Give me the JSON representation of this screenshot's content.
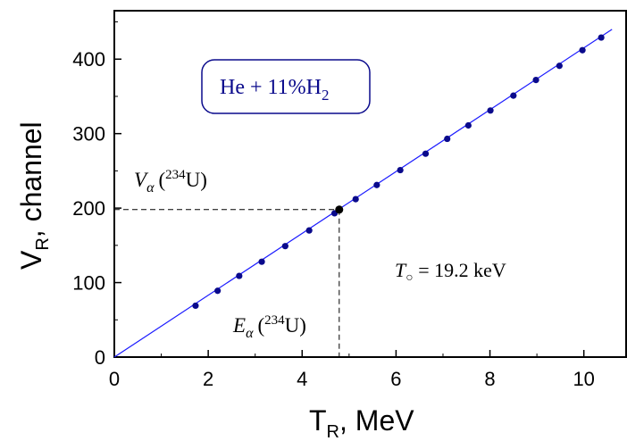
{
  "chart_data": {
    "type": "scatter",
    "xlabel": "T",
    "xlabel_sub": "R",
    "xlabel_unit": ", MeV",
    "ylabel": "V",
    "ylabel_sub": "R",
    "ylabel_unit": ", channel",
    "xlim": [
      0,
      10.9
    ],
    "ylim": [
      0,
      465
    ],
    "xticks": [
      0,
      2,
      4,
      6,
      8,
      10
    ],
    "yticks": [
      0,
      100,
      200,
      300,
      400
    ],
    "xtick_labels": [
      "0",
      "2",
      "4",
      "6",
      "8",
      "10"
    ],
    "ytick_labels": [
      "0",
      "100",
      "200",
      "300",
      "400"
    ],
    "legend_box": {
      "prefix": "He + 11%H",
      "subscript": "2"
    },
    "series": [
      {
        "x": [
          1.73,
          2.2,
          2.66,
          3.14,
          3.64,
          4.15,
          4.69,
          5.14,
          5.59,
          6.09,
          6.63,
          7.09,
          7.54,
          8.01,
          8.5,
          8.98,
          9.48,
          9.97,
          10.37
        ],
        "y": [
          69,
          89,
          109,
          128,
          149,
          170,
          193,
          212,
          231,
          251,
          273,
          293,
          311,
          331,
          351,
          372,
          391,
          412,
          429
        ],
        "color": "#0a0a8c"
      }
    ],
    "fit_line": {
      "x": [
        0,
        10.6
      ],
      "y": [
        0,
        440
      ],
      "color": "#1a1aff"
    },
    "highlight_point": {
      "x": 4.79,
      "y": 198,
      "color": "#000000"
    },
    "annotations": {
      "v_alpha": {
        "main": "V",
        "sub": "α",
        "paren_open": "(",
        "sup": "234",
        "elem": "U)"
      },
      "e_alpha": {
        "main": "E",
        "sub": "α",
        "paren_open": "(",
        "sup": "234",
        "elem": "U)"
      },
      "t_naught": {
        "main": "T",
        "sub": "○",
        "value": " = 19.2 keV"
      }
    }
  }
}
